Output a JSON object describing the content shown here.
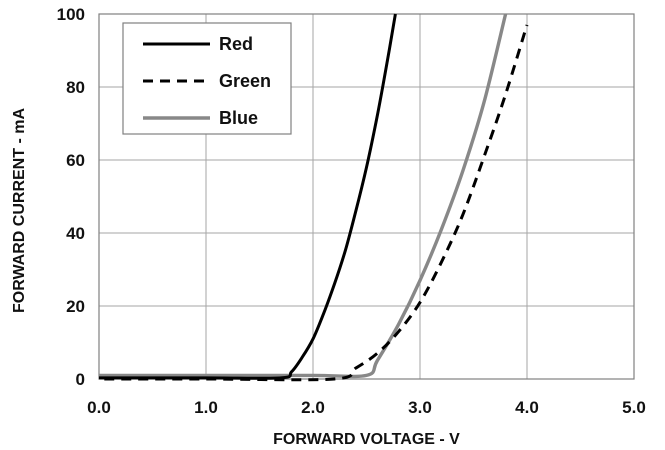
{
  "chart_data": {
    "type": "line",
    "title": "",
    "xlabel": "FORWARD VOLTAGE - V",
    "ylabel": "FORWARD CURRENT - mA",
    "xlim": [
      0,
      5
    ],
    "ylim": [
      0,
      100
    ],
    "x_ticks": [
      "0.0",
      "1.0",
      "2.0",
      "3.0",
      "4.0",
      "5.0"
    ],
    "y_ticks": [
      "0",
      "20",
      "40",
      "60",
      "80",
      "100"
    ],
    "grid": true,
    "legend_position": "top-left",
    "series": [
      {
        "name": "Red",
        "color": "#000000",
        "style": "solid",
        "points": [
          [
            0.0,
            0.3
          ],
          [
            1.0,
            0.3
          ],
          [
            1.7,
            0.3
          ],
          [
            1.8,
            2
          ],
          [
            1.9,
            6
          ],
          [
            2.0,
            11
          ],
          [
            2.1,
            18
          ],
          [
            2.2,
            26
          ],
          [
            2.3,
            35
          ],
          [
            2.4,
            46
          ],
          [
            2.5,
            58
          ],
          [
            2.6,
            72
          ],
          [
            2.7,
            88
          ],
          [
            2.77,
            100
          ]
        ]
      },
      {
        "name": "Green",
        "color": "#000000",
        "style": "dashed",
        "points": [
          [
            0.05,
            0
          ],
          [
            1.0,
            0
          ],
          [
            2.2,
            0
          ],
          [
            2.4,
            3
          ],
          [
            2.6,
            7
          ],
          [
            2.8,
            13
          ],
          [
            3.0,
            21
          ],
          [
            3.2,
            32
          ],
          [
            3.4,
            45
          ],
          [
            3.6,
            61
          ],
          [
            3.8,
            78
          ],
          [
            4.0,
            97
          ]
        ]
      },
      {
        "name": "Blue",
        "color": "#888888",
        "style": "solid",
        "points": [
          [
            0.0,
            1
          ],
          [
            1.0,
            1
          ],
          [
            2.0,
            1
          ],
          [
            2.5,
            1
          ],
          [
            2.6,
            5
          ],
          [
            2.8,
            15
          ],
          [
            3.0,
            27
          ],
          [
            3.2,
            41
          ],
          [
            3.4,
            57
          ],
          [
            3.6,
            76
          ],
          [
            3.8,
            100
          ]
        ]
      }
    ]
  }
}
